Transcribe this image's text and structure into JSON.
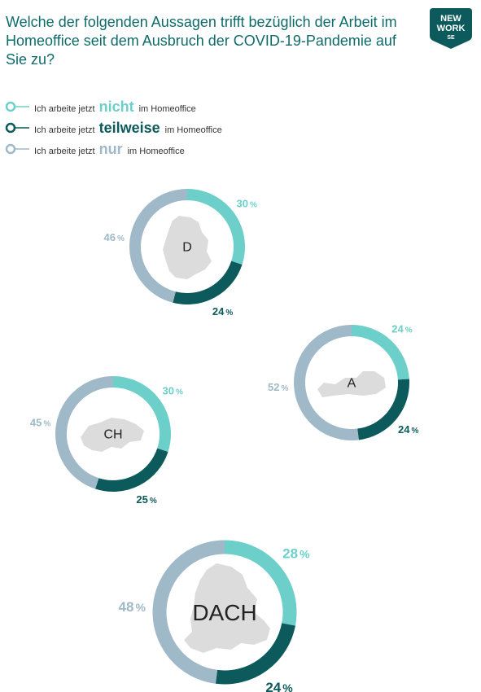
{
  "title": "Welche der folgenden Aussagen trifft bezüglich der Arbeit im Homeoffice seit dem Ausbruch der COVID-19-Pandemie auf Sie zu?",
  "logo": {
    "line1": "NEW",
    "line2": "WORK",
    "line3": "SE",
    "color": "#0c5a5c"
  },
  "legend": [
    {
      "prefix": "Ich arbeite jetzt",
      "word": "nicht",
      "suffix": "im Homeoffice",
      "color": "#6ccfc9"
    },
    {
      "prefix": "Ich arbeite jetzt",
      "word": "teilweise",
      "suffix": "im Homeoffice",
      "color": "#0c5a5c"
    },
    {
      "prefix": "Ich arbeite jetzt",
      "word": "nur",
      "suffix": "im Homeoffice",
      "color": "#9fb9c8"
    }
  ],
  "chart_data": {
    "type": "pie",
    "style": "donut",
    "series_names": [
      "nicht",
      "teilweise",
      "nur"
    ],
    "colors": {
      "nicht": "#6ccfc9",
      "teilweise": "#0c5a5c",
      "nur": "#9fb9c8"
    },
    "charts": [
      {
        "region": "D",
        "values": {
          "nicht": 30,
          "teilweise": 24,
          "nur": 46
        }
      },
      {
        "region": "A",
        "values": {
          "nicht": 24,
          "teilweise": 24,
          "nur": 52
        }
      },
      {
        "region": "CH",
        "values": {
          "nicht": 30,
          "teilweise": 25,
          "nur": 45
        }
      },
      {
        "region": "DACH",
        "values": {
          "nicht": 28,
          "teilweise": 24,
          "nur": 48
        }
      }
    ],
    "unit": "%"
  }
}
